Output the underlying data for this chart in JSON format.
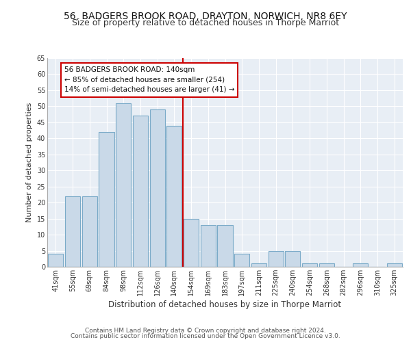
{
  "title1": "56, BADGERS BROOK ROAD, DRAYTON, NORWICH, NR8 6EY",
  "title2": "Size of property relative to detached houses in Thorpe Marriot",
  "xlabel": "Distribution of detached houses by size in Thorpe Marriot",
  "ylabel": "Number of detached properties",
  "footnote1": "Contains HM Land Registry data © Crown copyright and database right 2024.",
  "footnote2": "Contains public sector information licensed under the Open Government Licence v3.0.",
  "bar_labels": [
    "41sqm",
    "55sqm",
    "69sqm",
    "84sqm",
    "98sqm",
    "112sqm",
    "126sqm",
    "140sqm",
    "154sqm",
    "169sqm",
    "183sqm",
    "197sqm",
    "211sqm",
    "225sqm",
    "240sqm",
    "254sqm",
    "268sqm",
    "282sqm",
    "296sqm",
    "310sqm",
    "325sqm"
  ],
  "bar_values": [
    4,
    22,
    22,
    42,
    51,
    47,
    49,
    44,
    15,
    13,
    13,
    4,
    1,
    5,
    5,
    1,
    1,
    0,
    1,
    0,
    1
  ],
  "bar_color": "#c9d9e8",
  "bar_edgecolor": "#7aaac8",
  "bar_linewidth": 0.8,
  "vline_x": 7.5,
  "vline_color": "#cc0000",
  "annotation_text": "56 BADGERS BROOK ROAD: 140sqm\n← 85% of detached houses are smaller (254)\n14% of semi-detached houses are larger (41) →",
  "annotation_box_color": "#cc0000",
  "ylim": [
    0,
    65
  ],
  "yticks": [
    0,
    5,
    10,
    15,
    20,
    25,
    30,
    35,
    40,
    45,
    50,
    55,
    60,
    65
  ],
  "bg_color": "#e8eef5",
  "grid_color": "#ffffff",
  "title1_fontsize": 10,
  "title2_fontsize": 9,
  "xlabel_fontsize": 8.5,
  "ylabel_fontsize": 8,
  "tick_fontsize": 7,
  "annot_fontsize": 7.5,
  "footnote_fontsize": 6.5
}
